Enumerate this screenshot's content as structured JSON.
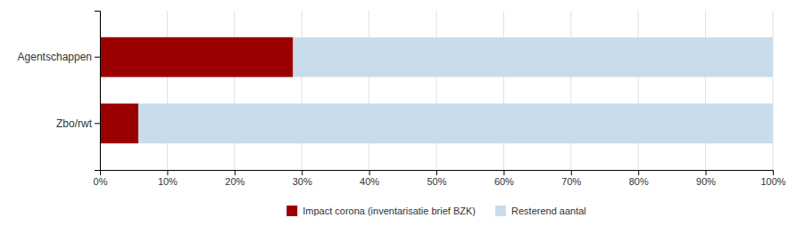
{
  "chart_data": {
    "type": "bar",
    "orientation": "horizontal",
    "stacked": true,
    "categories": [
      "Agentschappen",
      "Zbo/rwt"
    ],
    "series": [
      {
        "name": "Impact corona (inventarisatie brief BZK)",
        "color": "#9B0000",
        "values": [
          28.7,
          5.7
        ]
      },
      {
        "name": "Resterend aantal",
        "color": "#C9DCEC",
        "values": [
          71.3,
          94.3
        ]
      }
    ],
    "xlim": [
      0,
      100
    ],
    "xticks": [
      {
        "value": 0,
        "label": "0%"
      },
      {
        "value": 10,
        "label": "10%"
      },
      {
        "value": 20,
        "label": "20%"
      },
      {
        "value": 30,
        "label": "30%"
      },
      {
        "value": 40,
        "label": "40%"
      },
      {
        "value": 50,
        "label": "50%"
      },
      {
        "value": 60,
        "label": "60%"
      },
      {
        "value": 70,
        "label": "70%"
      },
      {
        "value": 80,
        "label": "80%"
      },
      {
        "value": 90,
        "label": "90%"
      },
      {
        "value": 100,
        "label": "100%"
      }
    ],
    "grid": true,
    "legend": "bottom"
  }
}
